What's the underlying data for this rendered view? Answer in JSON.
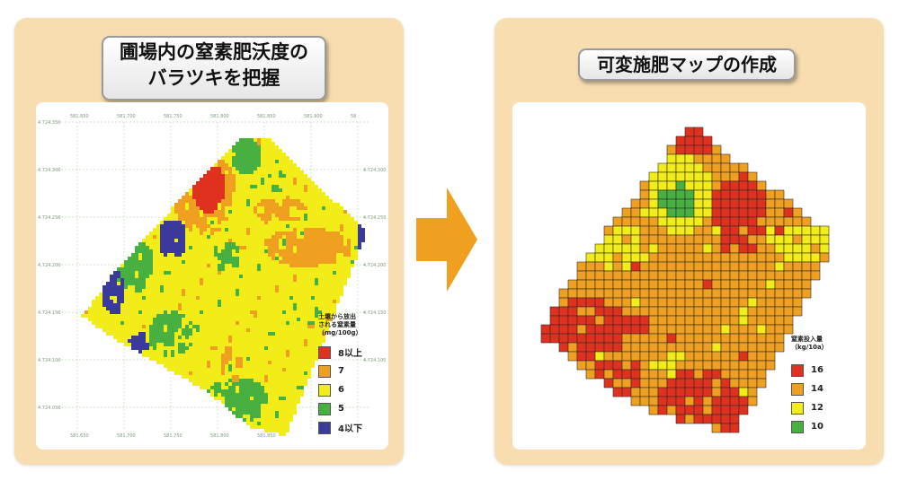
{
  "left_panel": {
    "title_line1": "圃場内の窒素肥沃度の",
    "title_line2": "バラツキを把握",
    "x_ticks_top": [
      "581.650",
      "581.700",
      "581.750",
      "581.800",
      "581.850",
      "581.900",
      "58"
    ],
    "x_ticks_bottom": [
      "581.650",
      "581.700",
      "581.750",
      "581.800",
      "581.850"
    ],
    "y_ticks_left": [
      "4.724.350",
      "4.724.300",
      "4.724.250",
      "4.724.200",
      "4.724.150",
      "4.724.100",
      "4.724.050"
    ],
    "y_ticks_right": [
      "4.724.300",
      "4.724.250",
      "4.724.200",
      "4.724.150",
      "4.724.100"
    ],
    "legend": {
      "title": "土壌から放出\nされる窒素量\n（mg/100g）",
      "items": [
        {
          "label": "8以上",
          "color": "#e0301e"
        },
        {
          "label": "7",
          "color": "#f0a020"
        },
        {
          "label": "6",
          "color": "#f2ec18"
        },
        {
          "label": "5",
          "color": "#48b040"
        },
        {
          "label": "4以下",
          "color": "#3a3a9a"
        }
      ]
    }
  },
  "right_panel": {
    "title": "可変施肥マップの作成",
    "legend": {
      "title": "窒素投入量\n（kg/10a）",
      "items": [
        {
          "label": "16",
          "color": "#e0301e"
        },
        {
          "label": "14",
          "color": "#f0a020"
        },
        {
          "label": "12",
          "color": "#f2ec18"
        },
        {
          "label": "10",
          "color": "#48b040"
        }
      ]
    }
  },
  "colors": {
    "panel_bg": "#f8ddb0",
    "arrow": "#f0a020",
    "red": "#e0301e",
    "orange": "#f0a020",
    "yellow": "#f2ec18",
    "green": "#48b040",
    "blue": "#3a3a9a"
  }
}
